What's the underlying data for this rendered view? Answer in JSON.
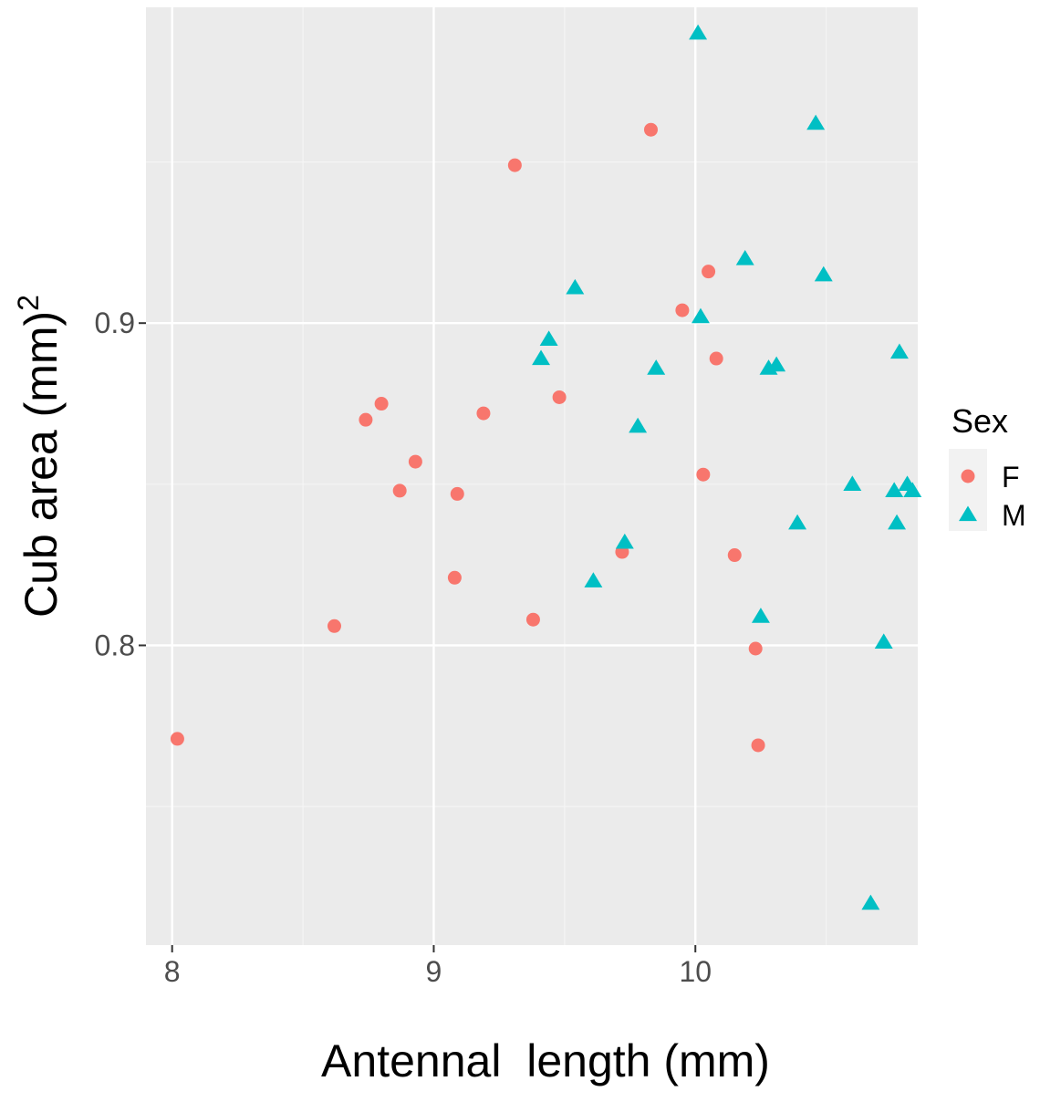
{
  "chart_data": {
    "type": "scatter",
    "title": "",
    "xlabel": "Antennal  length (mm)",
    "ylabel_main": "Cub area (mm)",
    "ylabel_sup": "2",
    "xlim": [
      7.9,
      10.85
    ],
    "ylim": [
      0.707,
      0.998
    ],
    "x_ticks": [
      {
        "value": 8,
        "label": "8"
      },
      {
        "value": 9,
        "label": "9"
      },
      {
        "value": 10,
        "label": "10"
      }
    ],
    "y_ticks": [
      {
        "value": 0.8,
        "label": "0.8"
      },
      {
        "value": 0.9,
        "label": "0.9"
      }
    ],
    "x_minor": [
      8.5,
      9.5,
      10.5
    ],
    "y_minor": [
      0.75,
      0.85,
      0.95
    ],
    "grid": true,
    "legend_position": "right",
    "legend_title": "Sex",
    "colors": {
      "panel": "#ebebeb",
      "grid_major": "#ffffff",
      "grid_minor": "#f5f5f5",
      "axis_text": "#4d4d4d",
      "axis_title": "#000000",
      "legend_bg": "#f2f2f2"
    },
    "series": [
      {
        "name": "F",
        "shape": "circle",
        "color": "#f8766d",
        "points": [
          [
            8.02,
            0.771
          ],
          [
            8.62,
            0.806
          ],
          [
            8.74,
            0.87
          ],
          [
            8.8,
            0.875
          ],
          [
            8.87,
            0.848
          ],
          [
            8.93,
            0.857
          ],
          [
            9.08,
            0.821
          ],
          [
            9.09,
            0.847
          ],
          [
            9.19,
            0.872
          ],
          [
            9.31,
            0.949
          ],
          [
            9.38,
            0.808
          ],
          [
            9.48,
            0.877
          ],
          [
            9.72,
            0.829
          ],
          [
            9.83,
            0.96
          ],
          [
            9.95,
            0.904
          ],
          [
            10.03,
            0.853
          ],
          [
            10.05,
            0.916
          ],
          [
            10.08,
            0.889
          ],
          [
            10.15,
            0.828
          ],
          [
            10.23,
            0.799
          ],
          [
            10.24,
            0.769
          ]
        ]
      },
      {
        "name": "M",
        "shape": "triangle",
        "color": "#00bfc4",
        "points": [
          [
            9.41,
            0.889
          ],
          [
            9.44,
            0.895
          ],
          [
            9.54,
            0.911
          ],
          [
            9.61,
            0.82
          ],
          [
            9.73,
            0.832
          ],
          [
            9.78,
            0.868
          ],
          [
            9.85,
            0.886
          ],
          [
            10.01,
            0.99
          ],
          [
            10.02,
            0.902
          ],
          [
            10.19,
            0.92
          ],
          [
            10.25,
            0.809
          ],
          [
            10.28,
            0.886
          ],
          [
            10.31,
            0.887
          ],
          [
            10.39,
            0.838
          ],
          [
            10.46,
            0.962
          ],
          [
            10.49,
            0.915
          ],
          [
            10.6,
            0.85
          ],
          [
            10.67,
            0.72
          ],
          [
            10.72,
            0.801
          ],
          [
            10.76,
            0.848
          ],
          [
            10.77,
            0.838
          ],
          [
            10.78,
            0.891
          ],
          [
            10.81,
            0.85
          ],
          [
            10.83,
            0.848
          ]
        ]
      }
    ]
  }
}
